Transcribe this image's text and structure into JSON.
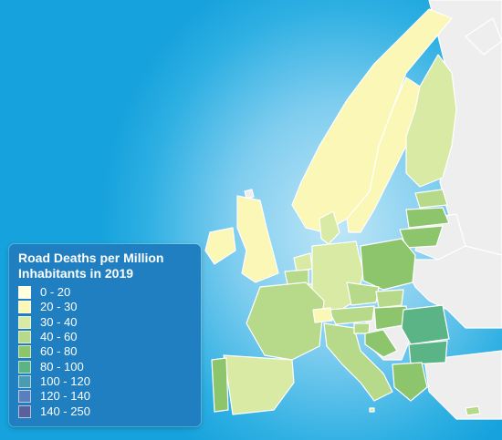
{
  "map": {
    "legend": {
      "title_line1": "Road Deaths per Million",
      "title_line2": "Inhabitants in 2019",
      "classes": [
        {
          "label": "0 - 20",
          "color": "#ffffdd"
        },
        {
          "label": "20 - 30",
          "color": "#fbf7b6"
        },
        {
          "label": "30 - 40",
          "color": "#d8eaa4"
        },
        {
          "label": "40 - 60",
          "color": "#b7d98a"
        },
        {
          "label": "60 - 80",
          "color": "#8cc56b"
        },
        {
          "label": "80 - 100",
          "color": "#5bb486"
        },
        {
          "label": "100 - 120",
          "color": "#4a9cb5"
        },
        {
          "label": "120 - 140",
          "color": "#5a7fbf"
        },
        {
          "label": "140 - 250",
          "color": "#5a5f9e"
        }
      ]
    },
    "colors": {
      "sea": "#2fb0e3",
      "non_eu": "#eeeeee",
      "border": "#ffffff"
    },
    "regions": [
      {
        "name": "Norway",
        "class": "20 - 30"
      },
      {
        "name": "Sweden",
        "class": "20 - 30"
      },
      {
        "name": "Finland",
        "class": "30 - 40"
      },
      {
        "name": "Estonia",
        "class": "40 - 60"
      },
      {
        "name": "Latvia",
        "class": "60 - 80"
      },
      {
        "name": "Lithuania",
        "class": "60 - 80"
      },
      {
        "name": "Denmark",
        "class": "30 - 40"
      },
      {
        "name": "Ireland",
        "class": "20 - 30"
      },
      {
        "name": "United Kingdom",
        "class": "20 - 30"
      },
      {
        "name": "Netherlands",
        "class": "30 - 40"
      },
      {
        "name": "Belgium",
        "class": "40 - 60"
      },
      {
        "name": "Luxembourg",
        "class": "30 - 40"
      },
      {
        "name": "Germany",
        "class": "30 - 40"
      },
      {
        "name": "Poland",
        "class": "60 - 80"
      },
      {
        "name": "Czechia",
        "class": "40 - 60"
      },
      {
        "name": "Slovakia",
        "class": "40 - 60"
      },
      {
        "name": "Austria",
        "class": "40 - 60"
      },
      {
        "name": "Hungary",
        "class": "60 - 80"
      },
      {
        "name": "Romania",
        "class": "80 - 100"
      },
      {
        "name": "Bulgaria",
        "class": "80 - 100"
      },
      {
        "name": "France",
        "class": "40 - 60"
      },
      {
        "name": "Switzerland",
        "class": "20 - 30"
      },
      {
        "name": "Italy",
        "class": "40 - 60"
      },
      {
        "name": "Slovenia",
        "class": "40 - 60"
      },
      {
        "name": "Croatia",
        "class": "60 - 80"
      },
      {
        "name": "Spain",
        "class": "30 - 40"
      },
      {
        "name": "Portugal",
        "class": "60 - 80"
      },
      {
        "name": "Greece",
        "class": "60 - 80"
      },
      {
        "name": "Malta",
        "class": "30 - 40"
      },
      {
        "name": "Cyprus",
        "class": "40 - 60"
      }
    ]
  }
}
